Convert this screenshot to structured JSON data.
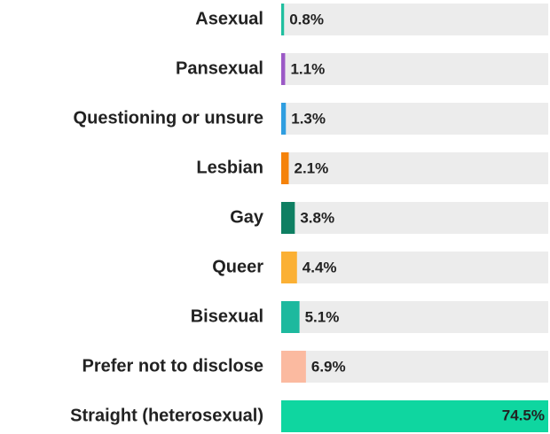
{
  "chart_data": {
    "type": "barh",
    "categories": [
      "Asexual",
      "Pansexual",
      "Questioning or unsure",
      "Lesbian",
      "Gay",
      "Queer",
      "Bisexual",
      "Prefer not to disclose",
      "Straight (heterosexual)"
    ],
    "values": [
      0.8,
      1.1,
      1.3,
      2.1,
      3.8,
      4.4,
      5.1,
      6.9,
      74.5
    ],
    "value_labels": [
      "0.8%",
      "1.1%",
      "1.3%",
      "2.1%",
      "3.8%",
      "4.4%",
      "5.1%",
      "6.9%",
      "74.5%"
    ],
    "colors": [
      "#1fbf9f",
      "#9b59c6",
      "#2f9ee0",
      "#f5820a",
      "#0e7f62",
      "#fbb034",
      "#1db99e",
      "#fbbaa0",
      "#0fd6a0"
    ],
    "xlim": [
      0,
      74.5
    ]
  }
}
